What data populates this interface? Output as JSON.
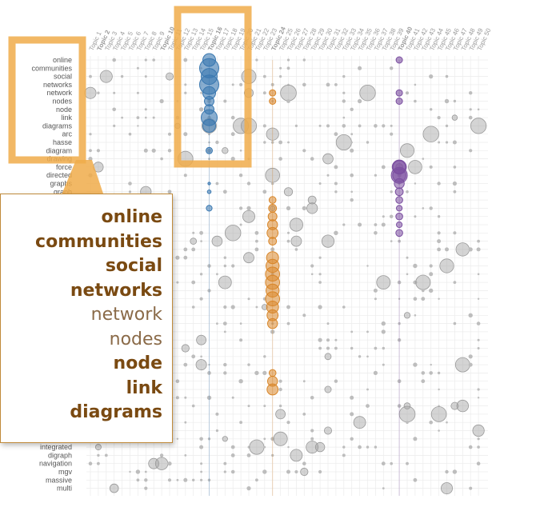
{
  "chart_data": {
    "type": "matrix",
    "topics": [
      "Topic 1",
      "Topic 2",
      "Topic 3",
      "Topic 4",
      "Topic 5",
      "Topic 6",
      "Topic 7",
      "Topic 8",
      "Topic 9",
      "Topic 10",
      "Topic 11",
      "Topic 12",
      "Topic 13",
      "Topic 14",
      "Topic 15",
      "Topic 16",
      "Topic 17",
      "Topic 18",
      "Topic 19",
      "Topic 20",
      "Topic 21",
      "Topic 22",
      "Topic 23",
      "Topic 24",
      "Topic 25",
      "Topic 26",
      "Topic 27",
      "Topic 28",
      "Topic 29",
      "Topic 30",
      "Topic 31",
      "Topic 32",
      "Topic 33",
      "Topic 34",
      "Topic 35",
      "Topic 36",
      "Topic 37",
      "Topic 38",
      "Topic 39",
      "Topic 40",
      "Topic 41",
      "Topic 42",
      "Topic 43",
      "Topic 44",
      "Topic 45",
      "Topic 46",
      "Topic 47",
      "Topic 48",
      "Topic 49",
      "Topic 50"
    ],
    "topic_colors": {
      "2": "#c0392b",
      "10": "#4a9a3a",
      "16": "#3a78b0",
      "24": "#d8862a",
      "40": "#7b4fa0"
    },
    "terms": [
      "online",
      "communities",
      "social",
      "networks",
      "network",
      "nodes",
      "node",
      "link",
      "diagrams",
      "arc",
      "hasse",
      "diagram",
      "drawing",
      "force",
      "directed",
      "graphs",
      "graph"
    ],
    "terms_bottom": [
      "vertex",
      "integrated",
      "digraph",
      "navigation",
      "mgv",
      "massive",
      "multi"
    ],
    "highlight_topic_color": "#3a78b0",
    "series": [
      {
        "topic": "Topic 16",
        "color": "#3a78b0",
        "weights": {
          "online": 3,
          "communities": 5,
          "social": 4,
          "networks": 5,
          "network": 3,
          "nodes": 2,
          "node": 2,
          "link": 4,
          "diagrams": 3,
          "diagram": 1
        }
      },
      {
        "topic": "Topic 24",
        "color": "#d8862a",
        "weights": {
          "network": 1,
          "nodes": 1
        }
      },
      {
        "topic": "Topic 40",
        "color": "#7b4fa0",
        "weights": {
          "online": 1,
          "network": 1,
          "nodes": 1,
          "force": 3,
          "directed": 4
        }
      }
    ]
  },
  "callout": {
    "terms": [
      {
        "text": "online",
        "weight": "strong"
      },
      {
        "text": "communities",
        "weight": "strong"
      },
      {
        "text": "social",
        "weight": "strong"
      },
      {
        "text": "networks",
        "weight": "strong"
      },
      {
        "text": "network",
        "weight": "light"
      },
      {
        "text": "nodes",
        "weight": "light"
      },
      {
        "text": "node",
        "weight": "strong"
      },
      {
        "text": "link",
        "weight": "strong"
      },
      {
        "text": "diagrams",
        "weight": "strong"
      }
    ],
    "accent_color": "#7a4a12",
    "light_color": "#8a6a48"
  },
  "highlight_color": "#f0ac4a"
}
